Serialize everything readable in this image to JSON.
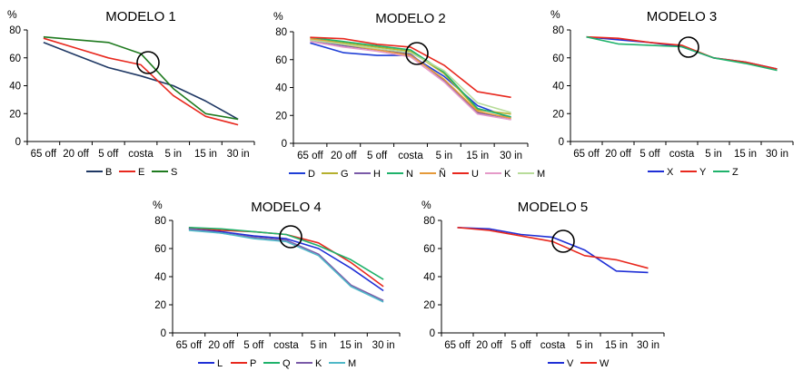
{
  "chart_data": [
    {
      "type": "line",
      "title": "MODELO 1",
      "ylabel": "%",
      "categories": [
        "65 off",
        "20 off",
        "5 off",
        "costa",
        "5 in",
        "15 in",
        "30 in"
      ],
      "ylim": [
        0,
        80
      ],
      "yticks": [
        0,
        20,
        40,
        60,
        80
      ],
      "grid": false,
      "legend_position": "bottom",
      "series": [
        {
          "name": "B",
          "color": "#1f3864",
          "values": [
            71,
            62,
            53,
            47,
            40,
            29,
            16
          ]
        },
        {
          "name": "E",
          "color": "#e8281e",
          "values": [
            74,
            67,
            60,
            55,
            33,
            18,
            12
          ]
        },
        {
          "name": "S",
          "color": "#1f7a1f",
          "values": [
            75,
            73,
            71,
            63,
            38,
            20,
            16
          ]
        }
      ]
    },
    {
      "type": "line",
      "title": "MODELO 2",
      "ylabel": "%",
      "categories": [
        "65 off",
        "20 off",
        "5 off",
        "costa",
        "5 in",
        "15 in",
        "30 in"
      ],
      "ylim": [
        0,
        80
      ],
      "yticks": [
        0,
        20,
        40,
        60,
        80
      ],
      "grid": false,
      "legend_position": "bottom",
      "series": [
        {
          "name": "D",
          "color": "#1f3fd6",
          "values": [
            72,
            65,
            63,
            63,
            48,
            27,
            18
          ]
        },
        {
          "name": "G",
          "color": "#b5b02e",
          "values": [
            75,
            72,
            69,
            66,
            50,
            24,
            21
          ]
        },
        {
          "name": "H",
          "color": "#7a5aa8",
          "values": [
            74,
            70,
            67,
            64,
            45,
            22,
            17
          ]
        },
        {
          "name": "N",
          "color": "#1fb26b",
          "values": [
            76,
            73,
            70,
            67,
            51,
            25,
            19
          ]
        },
        {
          "name": "Ñ",
          "color": "#e59a3a",
          "values": [
            75,
            71,
            67,
            63,
            46,
            23,
            18
          ]
        },
        {
          "name": "U",
          "color": "#e8281e",
          "values": [
            76,
            75,
            71,
            69,
            56,
            37,
            33
          ]
        },
        {
          "name": "K",
          "color": "#e59ac8",
          "values": [
            73,
            69,
            66,
            62,
            44,
            21,
            17
          ]
        },
        {
          "name": "M",
          "color": "#b8dc9a",
          "values": [
            74,
            71,
            68,
            65,
            52,
            29,
            22
          ]
        }
      ]
    },
    {
      "type": "line",
      "title": "MODELO 3",
      "ylabel": "%",
      "categories": [
        "65 off",
        "20 off",
        "5 off",
        "costa",
        "5 in",
        "15 in",
        "30 in"
      ],
      "ylim": [
        0,
        80
      ],
      "yticks": [
        0,
        20,
        40,
        60,
        80
      ],
      "grid": false,
      "legend_position": "bottom",
      "series": [
        {
          "name": "X",
          "color": "#1f2fd6",
          "values": [
            75,
            73,
            71,
            68,
            60,
            57,
            52
          ]
        },
        {
          "name": "Y",
          "color": "#e8281e",
          "values": [
            75,
            74,
            71,
            69,
            60,
            57,
            52
          ]
        },
        {
          "name": "Z",
          "color": "#1fb26b",
          "values": [
            75,
            70,
            69,
            68,
            60,
            56,
            51
          ]
        }
      ]
    },
    {
      "type": "line",
      "title": "MODELO 4",
      "ylabel": "%",
      "categories": [
        "65 off",
        "20 off",
        "5 off",
        "costa",
        "5 in",
        "15 in",
        "30 in"
      ],
      "ylim": [
        0,
        80
      ],
      "yticks": [
        0,
        20,
        40,
        60,
        80
      ],
      "grid": false,
      "legend_position": "bottom",
      "series": [
        {
          "name": "L",
          "color": "#1f2fd6",
          "values": [
            74,
            72,
            69,
            67,
            60,
            46,
            30
          ]
        },
        {
          "name": "P",
          "color": "#e8281e",
          "values": [
            75,
            73,
            72,
            70,
            64,
            50,
            33
          ]
        },
        {
          "name": "Q",
          "color": "#1fb26b",
          "values": [
            75,
            74,
            72,
            70,
            62,
            52,
            38
          ]
        },
        {
          "name": "K",
          "color": "#7a5aa8",
          "values": [
            74,
            71,
            68,
            66,
            56,
            34,
            23
          ]
        },
        {
          "name": "M",
          "color": "#4fb8c8",
          "values": [
            73,
            71,
            67,
            65,
            55,
            33,
            22
          ]
        }
      ]
    },
    {
      "type": "line",
      "title": "MODELO 5",
      "ylabel": "%",
      "categories": [
        "65 off",
        "20 off",
        "5 off",
        "costa",
        "5 in",
        "15 in",
        "30 in"
      ],
      "ylim": [
        0,
        80
      ],
      "yticks": [
        0,
        20,
        40,
        60,
        80
      ],
      "grid": false,
      "legend_position": "bottom",
      "series": [
        {
          "name": "V",
          "color": "#1f2fd6",
          "values": [
            75,
            74,
            70,
            68,
            59,
            44,
            43
          ]
        },
        {
          "name": "W",
          "color": "#e8281e",
          "values": [
            75,
            73,
            69,
            65,
            55,
            52,
            46
          ]
        }
      ]
    }
  ]
}
